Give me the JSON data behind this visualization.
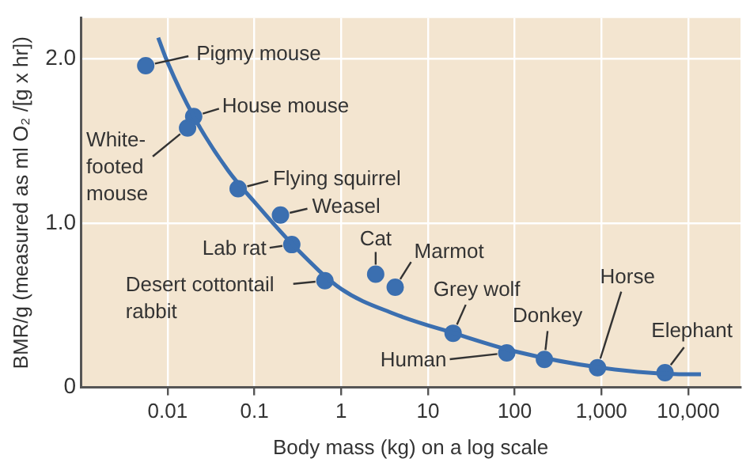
{
  "chart_data": {
    "type": "scatter",
    "xlabel": "Body mass (kg) on a log scale",
    "ylabel": "BMR/g (measured as ml O₂ /[g x hr])",
    "log": "x",
    "grid": true,
    "marker": "circle",
    "legend": false,
    "xlim": [
      0.001,
      40000
    ],
    "xticks": [
      {
        "value": 0.01,
        "label": "0.01"
      },
      {
        "value": 0.1,
        "label": "0.1"
      },
      1,
      10,
      100,
      {
        "value": 1000,
        "label": "1,000"
      },
      {
        "value": 10000,
        "label": "10,000"
      }
    ],
    "ylim": [
      0,
      2.25
    ],
    "yticks": [
      0,
      {
        "value": 1,
        "label": "1.0"
      },
      {
        "value": 2,
        "label": "2.0"
      }
    ],
    "series": [
      {
        "color": "#3b6fb0",
        "x": [
          0.0056,
          0.02,
          0.017,
          0.065,
          0.2,
          0.27,
          0.65,
          2.5,
          4.2,
          19.5,
          81,
          220,
          900,
          5400
        ],
        "values": [
          1.96,
          1.65,
          1.58,
          1.21,
          1.05,
          0.87,
          0.65,
          0.69,
          0.61,
          0.33,
          0.21,
          0.17,
          0.12,
          0.09
        ]
      },
      {
        "type": "line",
        "marker": "none",
        "color": "#3b6fb0",
        "x": [
          0.0078,
          0.01,
          0.02,
          0.05,
          0.1,
          0.3,
          1,
          4,
          20,
          100,
          1000,
          10000,
          14000
        ],
        "values": [
          2.13,
          1.98,
          1.65,
          1.32,
          1.13,
          0.85,
          0.6,
          0.45,
          0.33,
          0.22,
          0.12,
          0.08,
          0.08
        ]
      }
    ],
    "annotations": [
      {
        "text": "Pigmy mouse",
        "x": 0.0056,
        "y": 1.96
      },
      {
        "text": "House mouse",
        "x": 0.02,
        "y": 1.65
      },
      {
        "text": "White-\nfooted\nmouse",
        "x": 0.017,
        "y": 1.58
      },
      {
        "text": "Flying squirrel",
        "x": 0.065,
        "y": 1.21
      },
      {
        "text": "Weasel",
        "x": 0.2,
        "y": 1.05
      },
      {
        "text": "Lab rat",
        "x": 0.27,
        "y": 0.87
      },
      {
        "text": "Desert cottontail\nrabbit",
        "x": 0.65,
        "y": 0.65
      },
      {
        "text": "Cat",
        "x": 2.5,
        "y": 0.69
      },
      {
        "text": "Marmot",
        "x": 4.2,
        "y": 0.61
      },
      {
        "text": "Grey wolf",
        "x": 19.5,
        "y": 0.33
      },
      {
        "text": "Human",
        "x": 81,
        "y": 0.21
      },
      {
        "text": "Donkey",
        "x": 220,
        "y": 0.17
      },
      {
        "text": "Horse",
        "x": 900,
        "y": 0.12
      },
      {
        "text": "Elephant",
        "x": 5400,
        "y": 0.09
      }
    ]
  }
}
